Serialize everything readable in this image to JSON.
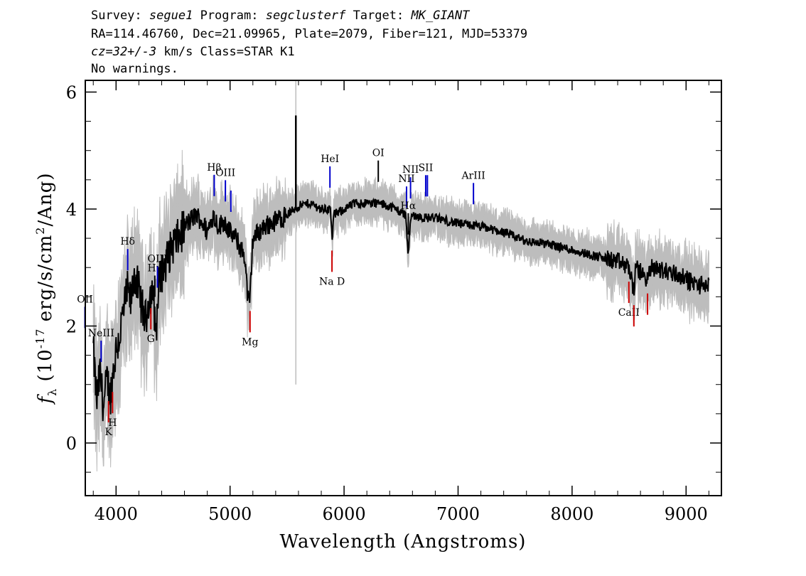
{
  "header": {
    "survey_label": "Survey:",
    "survey": "segue1",
    "program_label": "Program:",
    "program": "segclusterf",
    "target_label": "Target:",
    "target": "MK_GIANT",
    "line2": "RA=114.46760, Dec=21.09965, Plate=2079, Fiber=121, MJD=53379",
    "cz": "cz=32+/-3",
    "line3_rest": " km/s Class=STAR K1",
    "line4": "No warnings."
  },
  "chart_data": {
    "type": "line",
    "xlabel": "Wavelength (Angstroms)",
    "ylabel_parts": [
      "f",
      "λ",
      " (10",
      "-17",
      " erg/s/cm",
      "2",
      "/Ang)"
    ],
    "xlim": [
      3730,
      9310
    ],
    "ylim": [
      -0.9,
      6.2
    ],
    "x_ticks": [
      4000,
      5000,
      6000,
      7000,
      8000,
      9000
    ],
    "y_ticks": [
      0,
      2,
      4,
      6
    ],
    "x_minor_step": 200,
    "y_minor_step": 0.5,
    "colors": {
      "flux": "#000000",
      "error": "#bdbdbd",
      "emission": "#0000cc",
      "absorption": "#cc0000",
      "neutral": "#000000"
    },
    "series": [
      {
        "role": "flux",
        "x": [
          3800,
          3830,
          3860,
          3890,
          3920,
          3950,
          3980,
          4000,
          4030,
          4060,
          4100,
          4130,
          4160,
          4200,
          4230,
          4260,
          4290,
          4320,
          4350,
          4380,
          4420,
          4460,
          4500,
          4550,
          4600,
          4650,
          4700,
          4750,
          4800,
          4850,
          4900,
          4950,
          5000,
          5050,
          5100,
          5130,
          5150,
          5170,
          5185,
          5200,
          5250,
          5300,
          5400,
          5500,
          5600,
          5700,
          5800,
          5880,
          5895,
          5910,
          6000,
          6100,
          6200,
          6300,
          6400,
          6500,
          6540,
          6563,
          6580,
          6600,
          6700,
          6800,
          6900,
          7000,
          7200,
          7400,
          7600,
          7800,
          8000,
          8200,
          8400,
          8500,
          8542,
          8560,
          8662,
          8700,
          8800,
          8900,
          9000,
          9100,
          9200
        ],
        "y": [
          1.6,
          0.7,
          1.2,
          0.6,
          1.1,
          0.8,
          1.3,
          1.6,
          1.8,
          2.2,
          2.6,
          2.4,
          2.9,
          2.6,
          2.3,
          2.1,
          2.5,
          2.6,
          1.9,
          2.8,
          3.0,
          3.2,
          3.4,
          3.5,
          3.7,
          3.8,
          3.9,
          3.8,
          3.6,
          3.9,
          3.7,
          3.8,
          3.6,
          3.5,
          3.3,
          3.2,
          2.6,
          2.3,
          2.9,
          3.5,
          3.6,
          3.7,
          3.8,
          3.9,
          4.05,
          4.1,
          4.0,
          4.0,
          3.5,
          3.9,
          4.0,
          4.1,
          4.1,
          4.1,
          4.05,
          3.95,
          3.9,
          3.2,
          3.8,
          3.9,
          3.85,
          3.85,
          3.8,
          3.75,
          3.7,
          3.6,
          3.45,
          3.4,
          3.3,
          3.2,
          3.1,
          3.0,
          2.6,
          3.0,
          2.8,
          3.0,
          2.95,
          2.9,
          2.8,
          2.7,
          2.7
        ]
      }
    ],
    "spikes": [
      {
        "x": 5577,
        "y": 5.6
      }
    ],
    "line_labels": [
      {
        "name": "OII",
        "x": 3727,
        "type": "emission"
      },
      {
        "name": "NeIII",
        "x": 3869,
        "type": "emission"
      },
      {
        "name": "Hδ",
        "x": 4102,
        "type": "emission"
      },
      {
        "name": "Hγ",
        "x": 4340,
        "type": "neutral"
      },
      {
        "name": "OIII",
        "x": 4363,
        "type": "emission"
      },
      {
        "name": "Hβ",
        "x": 4861,
        "type": "emission"
      },
      {
        "name": "OIII",
        "x": 4959,
        "type": "emission"
      },
      {
        "name": "",
        "x": 5007,
        "type": "emission"
      },
      {
        "name": "HeI",
        "x": 5876,
        "type": "emission"
      },
      {
        "name": "OI",
        "x": 6300,
        "type": "neutral"
      },
      {
        "name": "NII",
        "x": 6548,
        "type": "emission"
      },
      {
        "name": "Hα",
        "x": 6563,
        "type": "neutral"
      },
      {
        "name": "NII",
        "x": 6583,
        "type": "emission"
      },
      {
        "name": "SII",
        "x": 6716,
        "type": "emission"
      },
      {
        "name": "",
        "x": 6731,
        "type": "emission"
      },
      {
        "name": "ArIII",
        "x": 7135,
        "type": "emission"
      },
      {
        "name": "K",
        "x": 3934,
        "type": "absorption"
      },
      {
        "name": "H",
        "x": 3969,
        "type": "absorption"
      },
      {
        "name": "G",
        "x": 4305,
        "type": "absorption"
      },
      {
        "name": "Mg",
        "x": 5175,
        "type": "absorption"
      },
      {
        "name": "Na D",
        "x": 5894,
        "type": "absorption"
      },
      {
        "name": "CaII",
        "x": 8498,
        "type": "absorption"
      },
      {
        "name": "",
        "x": 8542,
        "type": "absorption"
      },
      {
        "name": "",
        "x": 8662,
        "type": "absorption"
      }
    ]
  }
}
